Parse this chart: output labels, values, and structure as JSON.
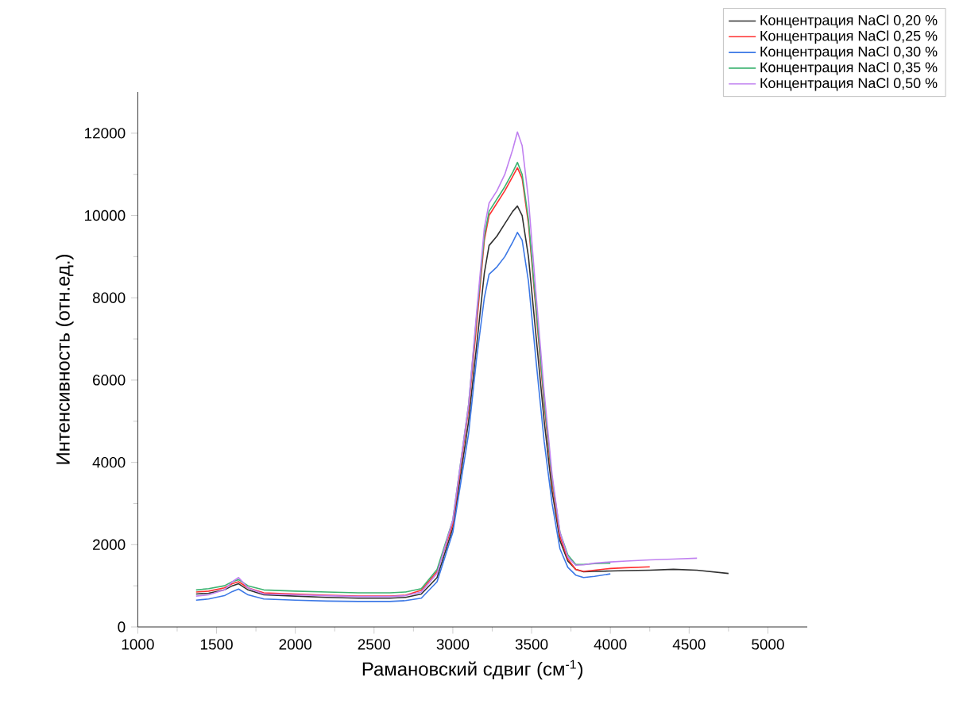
{
  "chart_data": {
    "type": "line",
    "xlabel": "Рамановский сдвиг (см$^{-1}$)",
    "ylabel": "Интенсивность (отн.ед.)",
    "xlim": [
      1000,
      5250
    ],
    "ylim": [
      0,
      13000
    ],
    "xticks": [
      1000,
      1500,
      2000,
      2500,
      3000,
      3500,
      4000,
      4500,
      5000
    ],
    "yticks": [
      0,
      2000,
      4000,
      6000,
      8000,
      10000,
      12000
    ],
    "legend": "top right",
    "marker": "none",
    "line_style": "solid",
    "grid": false,
    "x": [
      1370,
      1450,
      1550,
      1600,
      1640,
      1700,
      1800,
      2000,
      2200,
      2400,
      2600,
      2700,
      2800,
      2900,
      3000,
      3100,
      3150,
      3200,
      3230,
      3280,
      3330,
      3380,
      3410,
      3440,
      3480,
      3530,
      3580,
      3630,
      3680,
      3730,
      3780,
      3830,
      3900,
      4000,
      4100,
      4250,
      4400,
      4550,
      4750
    ],
    "series": [
      {
        "name": "Концентрация NaCl 0,20 %",
        "color": "#303030",
        "values": [
          800,
          820,
          900,
          1000,
          1050,
          900,
          780,
          750,
          720,
          700,
          700,
          720,
          800,
          1200,
          2400,
          5000,
          6800,
          8600,
          9270,
          9500,
          9800,
          10100,
          10230,
          10000,
          9000,
          7000,
          5000,
          3300,
          2100,
          1600,
          1400,
          1340,
          1350,
          1360,
          1370,
          1380,
          1400,
          1380,
          1300
        ]
      },
      {
        "name": "Концентрация NaCl 0,25 %",
        "color": "#ff3030",
        "values": [
          850,
          870,
          950,
          1050,
          1100,
          950,
          830,
          800,
          770,
          750,
          750,
          770,
          890,
          1350,
          2500,
          5300,
          7300,
          9400,
          10000,
          10300,
          10600,
          10950,
          11160,
          10900,
          9800,
          7600,
          5400,
          3500,
          2200,
          1650,
          1400,
          1350,
          1380,
          1420,
          1440,
          1460,
          null,
          null,
          null
        ]
      },
      {
        "name": "Концентрация NaCl 0,30 %",
        "color": "#3c78e6",
        "values": [
          650,
          680,
          760,
          860,
          920,
          780,
          680,
          650,
          630,
          620,
          620,
          640,
          700,
          1100,
          2300,
          4700,
          6500,
          8000,
          8570,
          8750,
          9000,
          9350,
          9590,
          9400,
          8400,
          6400,
          4500,
          3000,
          1900,
          1450,
          1260,
          1200,
          1230,
          1290,
          null,
          null,
          null,
          null,
          null
        ]
      },
      {
        "name": "Концентрация NaCl 0,35 %",
        "color": "#3cb371",
        "values": [
          900,
          930,
          1000,
          1100,
          1150,
          1000,
          900,
          870,
          850,
          830,
          830,
          850,
          930,
          1400,
          2600,
          5400,
          7500,
          9500,
          10100,
          10400,
          10700,
          11050,
          11290,
          11000,
          9900,
          7700,
          5500,
          3600,
          2300,
          1750,
          1520,
          1520,
          1540,
          1550,
          null,
          null,
          null,
          null,
          null
        ]
      },
      {
        "name": "Концентрация NaCl 0,50 %",
        "color": "#c080f0",
        "values": [
          750,
          780,
          900,
          1100,
          1200,
          950,
          800,
          780,
          760,
          740,
          740,
          760,
          850,
          1300,
          2600,
          5400,
          7600,
          9700,
          10300,
          10600,
          11000,
          11600,
          12030,
          11700,
          10400,
          8000,
          5700,
          3700,
          2300,
          1700,
          1500,
          1510,
          1550,
          1580,
          1600,
          1630,
          1650,
          1670,
          null
        ]
      }
    ]
  }
}
